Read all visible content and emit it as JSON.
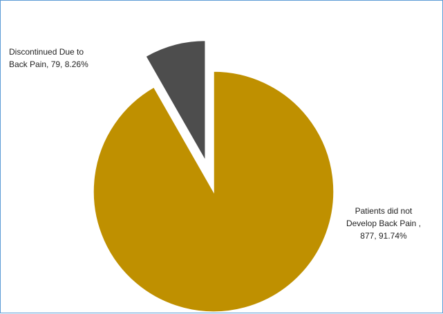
{
  "chart_data": {
    "type": "pie",
    "title": "",
    "slices": [
      {
        "label": "Discontinued Due to Back Pain",
        "value": 79,
        "percent": "8.26%",
        "color": "#4d4d4d",
        "exploded": true
      },
      {
        "label": "Patients did not Develop Back Pain",
        "value": 877,
        "percent": "91.74%",
        "color": "#bf9000",
        "exploded": false
      }
    ],
    "data_labels": [
      "Discontinued Due to\nBack Pain, 79, 8.26%",
      "Patients did not\nDevelop Back Pain ,\n877, 91.74%"
    ],
    "legend": "none"
  }
}
